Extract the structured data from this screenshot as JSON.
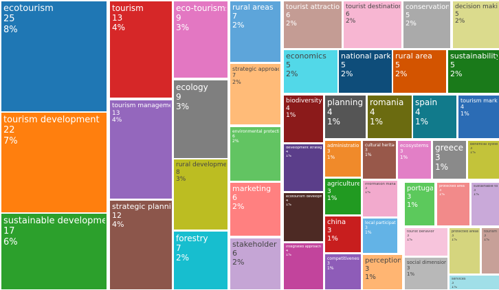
{
  "chart_data": {
    "type": "treemap",
    "value_format": "count and percent",
    "items": [
      {
        "label": "ecotourism",
        "value": 25,
        "percent": "8%",
        "color": "#1f77b4"
      },
      {
        "label": "tourism development",
        "value": 22,
        "percent": "7%",
        "color": "#ff7f0e"
      },
      {
        "label": "sustainable development",
        "value": 17,
        "percent": "6%",
        "color": "#2ca02c"
      },
      {
        "label": "tourism",
        "value": 13,
        "percent": "4%",
        "color": "#d62728"
      },
      {
        "label": "tourism management",
        "value": 13,
        "percent": "4%",
        "color": "#9467bd"
      },
      {
        "label": "strategic planning",
        "value": 12,
        "percent": "4%",
        "color": "#8c564b"
      },
      {
        "label": "eco-tourisms",
        "value": 9,
        "percent": "3%",
        "color": "#e377c2"
      },
      {
        "label": "ecology",
        "value": 9,
        "percent": "3%",
        "color": "#7f7f7f"
      },
      {
        "label": "rural development",
        "value": 8,
        "percent": "3%",
        "color": "#bcbd22"
      },
      {
        "label": "forestry",
        "value": 7,
        "percent": "2%",
        "color": "#17becf"
      },
      {
        "label": "rural areas",
        "value": 7,
        "percent": "2%",
        "color": "#5da5da"
      },
      {
        "label": "strategic approach",
        "value": 7,
        "percent": "2%",
        "color": "#ffbb78"
      },
      {
        "label": "environmental protection",
        "value": 6,
        "percent": "2%",
        "color": "#62c462"
      },
      {
        "label": "marketing",
        "value": 6,
        "percent": "2%",
        "color": "#ff8080"
      },
      {
        "label": "stakeholder",
        "value": 6,
        "percent": "2%",
        "color": "#c5a5d5"
      },
      {
        "label": "tourist attraction",
        "value": 6,
        "percent": "2%",
        "color": "#c49c94"
      },
      {
        "label": "tourist destination",
        "value": 6,
        "percent": "2%",
        "color": "#f7b6d2"
      },
      {
        "label": "conservation",
        "value": 5,
        "percent": "2%",
        "color": "#aaaaaa"
      },
      {
        "label": "decision making",
        "value": 5,
        "percent": "2%",
        "color": "#dbdb8d"
      },
      {
        "label": "economics",
        "value": 5,
        "percent": "2%",
        "color": "#52d8e8"
      },
      {
        "label": "national park",
        "value": 5,
        "percent": "2%",
        "color": "#0e4d7a"
      },
      {
        "label": "rural area",
        "value": 5,
        "percent": "2%",
        "color": "#d35400"
      },
      {
        "label": "sustainability",
        "value": 5,
        "percent": "2%",
        "color": "#1a7a1a"
      },
      {
        "label": "biodiversity",
        "value": 4,
        "percent": "1%",
        "color": "#8b1a1a"
      },
      {
        "label": "planning",
        "value": 4,
        "percent": "1%",
        "color": "#555555"
      },
      {
        "label": "romania",
        "value": 4,
        "percent": "1%",
        "color": "#6b6b10"
      },
      {
        "label": "spain",
        "value": 4,
        "percent": "1%",
        "color": "#117a8b"
      },
      {
        "label": "tourism market",
        "value": 4,
        "percent": "1%",
        "color": "#2b6cb5"
      },
      {
        "label": "development strategies",
        "value": 4,
        "percent": "1%",
        "color": "#5b3e8a"
      },
      {
        "label": "ecotourism development",
        "value": 4,
        "percent": "1%",
        "color": "#4d2a24"
      },
      {
        "label": "integrated approach",
        "value": 4,
        "percent": "1%",
        "color": "#c2449c"
      },
      {
        "label": "administration",
        "value": 3,
        "percent": "1%",
        "color": "#f08a2a"
      },
      {
        "label": "agriculture",
        "value": 3,
        "percent": "1%",
        "color": "#219a21"
      },
      {
        "label": "china",
        "value": 3,
        "percent": "1%",
        "color": "#c81e1e"
      },
      {
        "label": "competitiveness",
        "value": 3,
        "percent": "1%",
        "color": "#8e5cb8"
      },
      {
        "label": "cultural heritages",
        "value": 3,
        "percent": "1%",
        "color": "#98584a"
      },
      {
        "label": "ecosystems",
        "value": 3,
        "percent": "1%",
        "color": "#e27fc6"
      },
      {
        "label": "greece",
        "value": 3,
        "percent": "1%",
        "color": "#8a8a8a"
      },
      {
        "label": "beneficial systems",
        "value": 3,
        "percent": "1%",
        "color": "#c3c33a"
      },
      {
        "label": "information management",
        "value": 3,
        "percent": "1%",
        "color": "#f2aacd"
      },
      {
        "label": "local participation",
        "value": 3,
        "percent": "1%",
        "color": "#63b3e6"
      },
      {
        "label": "perception",
        "value": 3,
        "percent": "1%",
        "color": "#ffb572"
      },
      {
        "label": "portugal",
        "value": 3,
        "percent": "1%",
        "color": "#5cc95c"
      },
      {
        "label": "protected area",
        "value": 3,
        "percent": "1%",
        "color": "#f28a8a"
      },
      {
        "label": "sustainable tourism",
        "value": 3,
        "percent": "1%",
        "color": "#c9a9d9"
      },
      {
        "label": "tourist behavior",
        "value": 3,
        "percent": "1%",
        "color": "#f7c4dc"
      },
      {
        "label": "social dimension",
        "value": 3,
        "percent": "1%",
        "color": "#b8b8b8"
      },
      {
        "label": "protected areas",
        "value": 3,
        "percent": "1%",
        "color": "#d5d57e"
      },
      {
        "label": "tourism economics",
        "value": 3,
        "percent": "1%",
        "color": "#c7a098"
      },
      {
        "label": "services",
        "value": 3,
        "percent": "1%",
        "color": "#a0dfe8"
      }
    ]
  }
}
